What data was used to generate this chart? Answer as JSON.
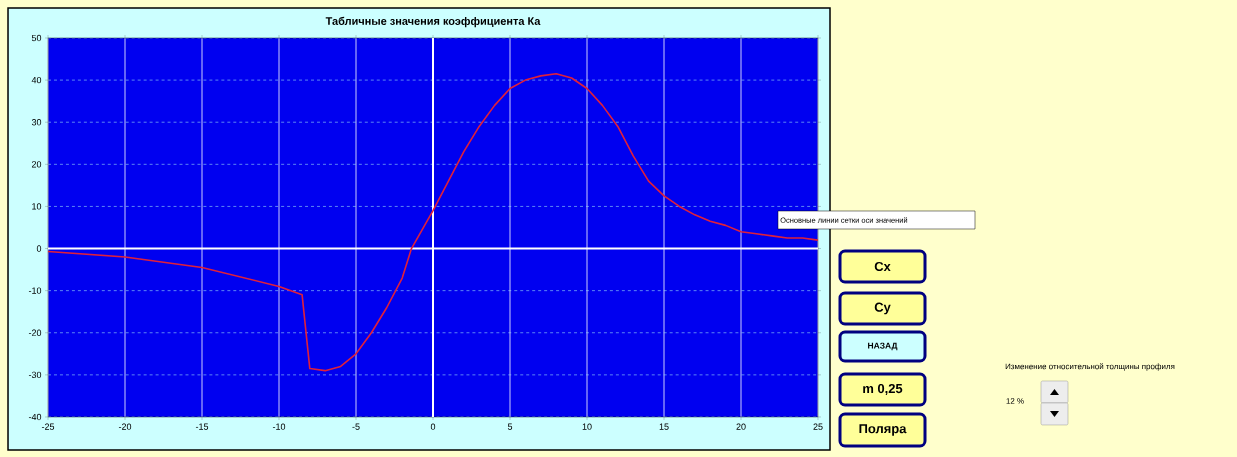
{
  "chart_data": {
    "type": "line",
    "title": "Табличные значения коэффициента Ка",
    "x": [
      -25,
      -20,
      -15,
      -10,
      -8.5,
      -8,
      -7,
      -6,
      -5,
      -4,
      -3,
      -2,
      -1.4,
      0,
      1,
      2,
      3,
      4,
      5,
      6,
      7,
      8,
      9,
      10,
      11,
      12,
      13,
      14,
      15,
      16,
      17,
      18,
      19,
      20,
      21,
      22,
      23,
      24,
      25
    ],
    "series": [
      {
        "color": "#e0203a",
        "values": [
          -0.7,
          -2,
          -4.5,
          -9,
          -11,
          -28.5,
          -29,
          -28,
          -25,
          -20,
          -14,
          -7,
          0,
          9,
          16,
          23,
          29,
          34,
          38,
          40,
          41,
          41.5,
          40.5,
          38,
          34,
          29,
          22,
          16,
          12.5,
          10,
          8,
          6.5,
          5.5,
          4,
          3.5,
          3,
          2.5,
          2.5,
          2
        ]
      }
    ],
    "xlim": [
      -25,
      25
    ],
    "xticks": [
      -25,
      -20,
      -15,
      -10,
      -5,
      0,
      5,
      10,
      15,
      20,
      25
    ],
    "ylim": [
      -40,
      50
    ],
    "yticks": [
      -40,
      -30,
      -20,
      -10,
      0,
      10,
      20,
      30,
      40,
      50
    ],
    "grid": true,
    "annotations": [
      "Основные линии сетки оси значений",
      "Cx",
      "Cy",
      "НАЗАД",
      "m 0,25",
      "Поляра",
      "Изменение относительной толщины профиля",
      "12 %"
    ]
  }
}
